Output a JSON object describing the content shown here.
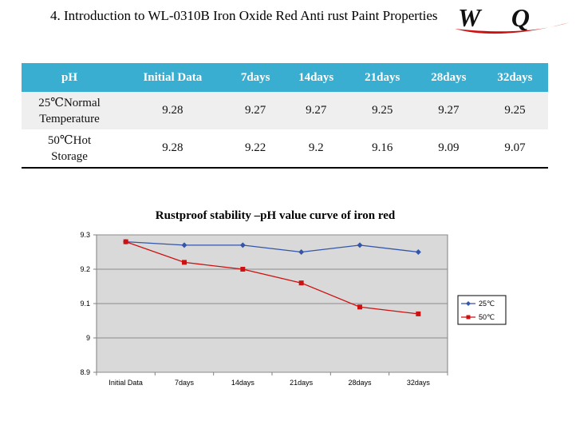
{
  "header": {
    "title": "4. Introduction to WL-0310B Iron Oxide Red Anti rust Paint Properties",
    "logo_text": "WQ"
  },
  "table": {
    "headers": [
      "pH",
      "Initial Data",
      "7days",
      "14days",
      "21days",
      "28days",
      "32days"
    ],
    "rows": [
      {
        "label_line1": "25℃Normal",
        "label_line2": "Temperature",
        "values": [
          "9.28",
          "9.27",
          "9.27",
          "9.25",
          "9.27",
          "9.25"
        ]
      },
      {
        "label_line1": "50℃Hot",
        "label_line2": "Storage",
        "values": [
          "9.28",
          "9.22",
          "9.2",
          "9.16",
          "9.09",
          "9.07"
        ]
      }
    ]
  },
  "chart_data": {
    "type": "line",
    "title": "Rustproof stability –pH value curve of iron red",
    "categories": [
      "Initial Data",
      "7days",
      "14days",
      "21days",
      "28days",
      "32days"
    ],
    "series": [
      {
        "name": "25℃",
        "values": [
          9.28,
          9.27,
          9.27,
          9.25,
          9.27,
          9.25
        ],
        "color": "#3355aa",
        "marker": "diamond"
      },
      {
        "name": "50℃",
        "values": [
          9.28,
          9.22,
          9.2,
          9.16,
          9.09,
          9.07
        ],
        "color": "#cc1111",
        "marker": "square"
      }
    ],
    "ylim": [
      8.9,
      9.3
    ],
    "yticks": [
      "9.3",
      "9.2",
      "9.1",
      "9",
      "8.9"
    ],
    "ytick_values": [
      9.3,
      9.2,
      9.1,
      9.0,
      8.9
    ],
    "grid": true,
    "legend": "right",
    "plot_bg": "#d9d9d9"
  }
}
